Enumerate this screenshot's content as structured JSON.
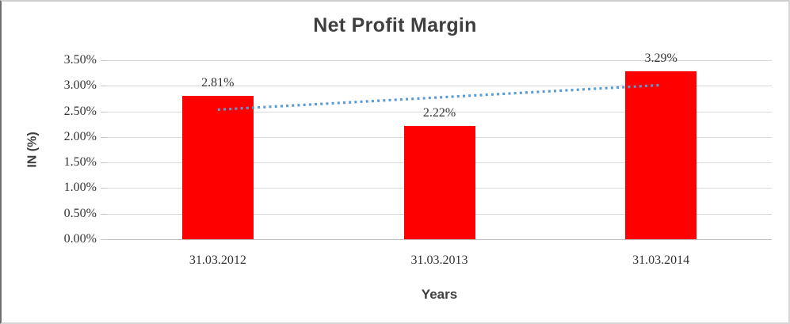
{
  "chart_data": {
    "type": "bar",
    "title": "Net Profit Margin",
    "xlabel": "Years",
    "ylabel": "IN (%)",
    "categories": [
      "31.03.2012",
      "31.03.2013",
      "31.03.2014"
    ],
    "values": [
      2.81,
      2.22,
      3.29
    ],
    "data_labels": [
      "2.81%",
      "2.22%",
      "3.29%"
    ],
    "y_tick_labels": [
      "3.50%",
      "3.00%",
      "2.50%",
      "2.00%",
      "1.50%",
      "1.00%",
      "0.50%",
      "0.00%"
    ],
    "ylim": [
      0,
      3.5
    ],
    "grid": true,
    "legend": false,
    "trendline": {
      "type": "linear",
      "style": "dotted",
      "color": "#5b9bd5"
    },
    "colors": {
      "bar": "#ff0000",
      "gridline": "#d9d9d9",
      "axis_line": "#bfbfbf",
      "tick_text": "#333333",
      "title_text": "#3f3f3f"
    }
  }
}
